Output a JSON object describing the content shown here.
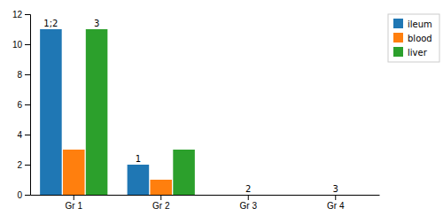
{
  "chart_data": {
    "type": "bar",
    "categories": [
      "Gr 1",
      "Gr 2",
      "Gr 3",
      "Gr 4"
    ],
    "series": [
      {
        "name": "ileum",
        "values": [
          11,
          2,
          0,
          0
        ]
      },
      {
        "name": "blood",
        "values": [
          3,
          1,
          0,
          0
        ]
      },
      {
        "name": "liver",
        "values": [
          11,
          3,
          0,
          0
        ]
      }
    ],
    "ylim": [
      0,
      12
    ],
    "yticks": [
      0,
      2,
      4,
      6,
      8,
      10,
      12
    ],
    "annotations": [
      {
        "text": "1;2",
        "category": "Gr 1",
        "series": "ileum"
      },
      {
        "text": "3",
        "category": "Gr 1",
        "series": "liver"
      },
      {
        "text": "1",
        "category": "Gr 2",
        "series": "ileum"
      },
      {
        "text": "2",
        "category": "Gr 3",
        "series": "blood"
      },
      {
        "text": "3",
        "category": "Gr 4",
        "series": "blood"
      }
    ],
    "legend": "upper right",
    "grid": false
  }
}
